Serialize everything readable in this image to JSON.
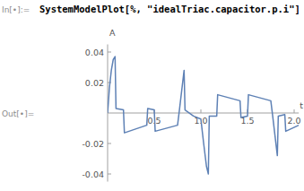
{
  "input_label": "In[•]:=",
  "input": "SystemModelPlot[%, \"idealTriac.capacitor.p.i\"]",
  "output_label": "Out[•]=",
  "chart_data": {
    "type": "line",
    "x_label": "t",
    "y_label": "A",
    "xlim": [
      0,
      2.05
    ],
    "ylim": [
      -0.045,
      0.045
    ],
    "xticks": [
      0.5,
      {
        "value": 1,
        "label": "1.0"
      },
      1.5,
      {
        "value": 2,
        "label": "2.0"
      }
    ],
    "yticks": [
      -0.04,
      -0.02,
      0.02,
      0.04
    ],
    "grid": false,
    "series": [
      {
        "name": "idealTriac.capacitor.p.i",
        "color": "#5e81b5",
        "x": [
          0,
          0.02,
          0.04,
          0.06,
          0.08,
          0.09,
          0.17,
          0.18,
          0.42,
          0.43,
          0.5,
          0.51,
          0.75,
          0.77,
          0.82,
          0.83,
          0.92,
          1.0,
          1.03,
          1.06,
          1.08,
          1.09,
          1.17,
          1.18,
          1.42,
          1.43,
          1.5,
          1.51,
          1.75,
          1.77,
          1.82,
          1.83,
          1.9,
          1.91,
          2.05
        ],
        "values": [
          0,
          0.017,
          0.028,
          0.035,
          0.037,
          0.003,
          0.002,
          -0.013,
          -0.008,
          0.003,
          0.002,
          -0.012,
          -0.008,
          0.002,
          0.028,
          0.002,
          -0.002,
          -0.004,
          -0.02,
          -0.035,
          -0.04,
          -0.002,
          -0.002,
          0.012,
          0.008,
          -0.003,
          -0.002,
          0.012,
          0.008,
          -0.002,
          -0.028,
          -0.002,
          -0.001,
          -0.012,
          -0.008
        ]
      }
    ]
  }
}
